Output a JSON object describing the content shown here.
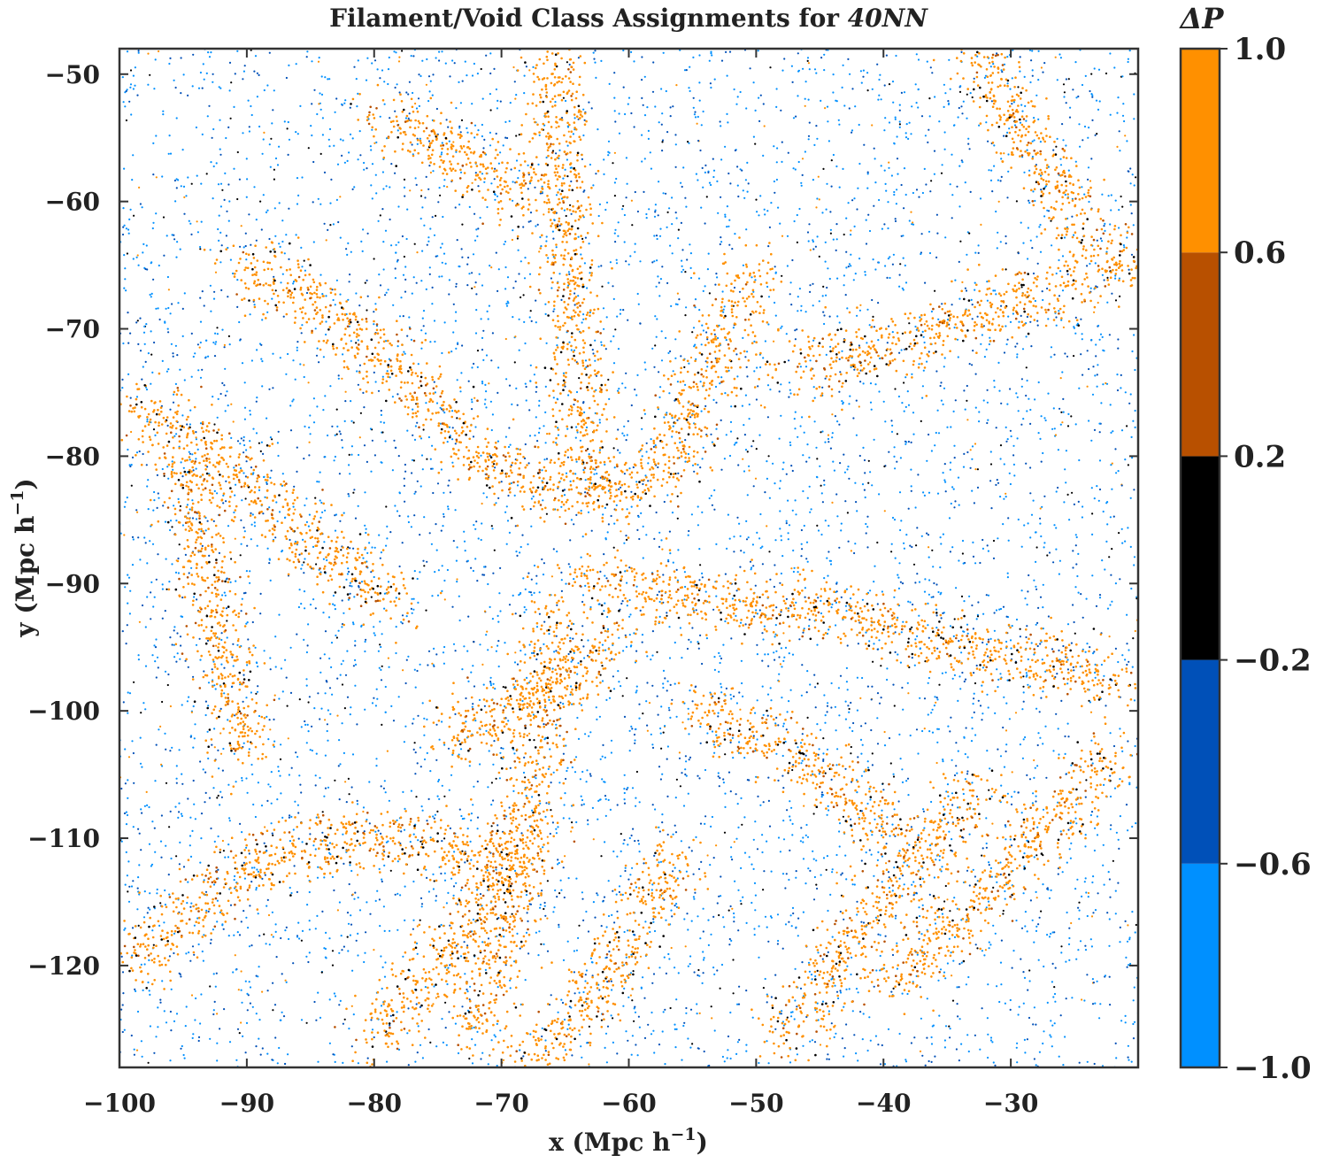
{
  "chart_data": {
    "type": "scatter",
    "title_prefix": "Filament/Void Class Assignments for ",
    "title_italic": "40NN",
    "xlabel": "x (Mpc h",
    "ylabel": "y (Mpc h",
    "label_superscript": "−1",
    "xlim": [
      -100,
      -20
    ],
    "ylim": [
      -128,
      -48
    ],
    "xticks": [
      -100,
      -90,
      -80,
      -70,
      -60,
      -50,
      -40,
      -30
    ],
    "xtick_labels": [
      "−100",
      "−90",
      "−80",
      "−70",
      "−60",
      "−50",
      "−40",
      "−30"
    ],
    "yticks": [
      -50,
      -60,
      -70,
      -80,
      -90,
      -100,
      -110,
      -120
    ],
    "ytick_labels": [
      "−50",
      "−60",
      "−70",
      "−80",
      "−90",
      "−100",
      "−110",
      "−120"
    ],
    "grid": false,
    "colorbar": {
      "label": "ΔP",
      "range": [
        -1.0,
        1.0
      ],
      "boundaries": [
        -1.0,
        -0.6,
        -0.2,
        0.2,
        0.6,
        1.0
      ],
      "tick_labels": [
        "−1.0",
        "−0.6",
        "−0.2",
        "0.2",
        "0.6",
        "1.0"
      ],
      "colors": [
        "#0090ff",
        "#0050b8",
        "#000000",
        "#b85000",
        "#ff9000"
      ]
    },
    "filaments": [
      {
        "x": [
          -66,
          -65,
          -64.5,
          -64,
          -63
        ],
        "y": [
          -48,
          -60,
          -70,
          -75,
          -82
        ]
      },
      {
        "x": [
          -72,
          -68,
          -63,
          -58,
          -55
        ],
        "y": [
          -80,
          -82,
          -83,
          -82,
          -77
        ]
      },
      {
        "x": [
          -56,
          -53,
          -50
        ],
        "y": [
          -77,
          -72,
          -65
        ]
      },
      {
        "x": [
          -91,
          -86,
          -81,
          -76,
          -72
        ],
        "y": [
          -65,
          -67,
          -71,
          -75,
          -80
        ]
      },
      {
        "x": [
          -99,
          -94,
          -90,
          -86,
          -82,
          -78
        ],
        "y": [
          -76,
          -79,
          -82,
          -86,
          -89,
          -92
        ]
      },
      {
        "x": [
          -95,
          -94,
          -92,
          -90
        ],
        "y": [
          -80,
          -85,
          -95,
          -104
        ]
      },
      {
        "x": [
          -64,
          -60,
          -55,
          -50,
          -45,
          -40,
          -34,
          -27,
          -21
        ],
        "y": [
          -90,
          -90,
          -91,
          -92,
          -92,
          -93,
          -95,
          -96,
          -98
        ]
      },
      {
        "x": [
          -66,
          -67,
          -68,
          -69,
          -70,
          -71,
          -72
        ],
        "y": [
          -92,
          -100,
          -108,
          -114,
          -118,
          -122,
          -126
        ]
      },
      {
        "x": [
          -75,
          -72,
          -68,
          -64,
          -61
        ],
        "y": [
          -102,
          -101,
          -99,
          -97,
          -94
        ]
      },
      {
        "x": [
          -99,
          -94,
          -88,
          -82,
          -76,
          -70
        ],
        "y": [
          -120,
          -115,
          -111,
          -110,
          -110,
          -112
        ]
      },
      {
        "x": [
          -80,
          -76,
          -72,
          -68
        ],
        "y": [
          -126,
          -121,
          -116,
          -110
        ]
      },
      {
        "x": [
          -68,
          -64,
          -60,
          -56
        ],
        "y": [
          -128,
          -124,
          -118,
          -111
        ]
      },
      {
        "x": [
          -48,
          -44,
          -40,
          -36,
          -32
        ],
        "y": [
          -126,
          -120,
          -115,
          -110,
          -106
        ]
      },
      {
        "x": [
          -40,
          -36,
          -31,
          -26,
          -22
        ],
        "y": [
          -122,
          -118,
          -113,
          -108,
          -103
        ]
      },
      {
        "x": [
          -33,
          -30,
          -27,
          -24,
          -21
        ],
        "y": [
          -48,
          -53,
          -58,
          -62,
          -66
        ]
      },
      {
        "x": [
          -48,
          -42,
          -36,
          -30,
          -24
        ],
        "y": [
          -73,
          -72,
          -70,
          -68,
          -66
        ]
      },
      {
        "x": [
          -80,
          -76,
          -73,
          -70,
          -67
        ],
        "y": [
          -53,
          -55,
          -57,
          -58,
          -60
        ]
      },
      {
        "x": [
          -55,
          -50,
          -46,
          -42,
          -39
        ],
        "y": [
          -100,
          -102,
          -104,
          -107,
          -110
        ]
      }
    ]
  }
}
